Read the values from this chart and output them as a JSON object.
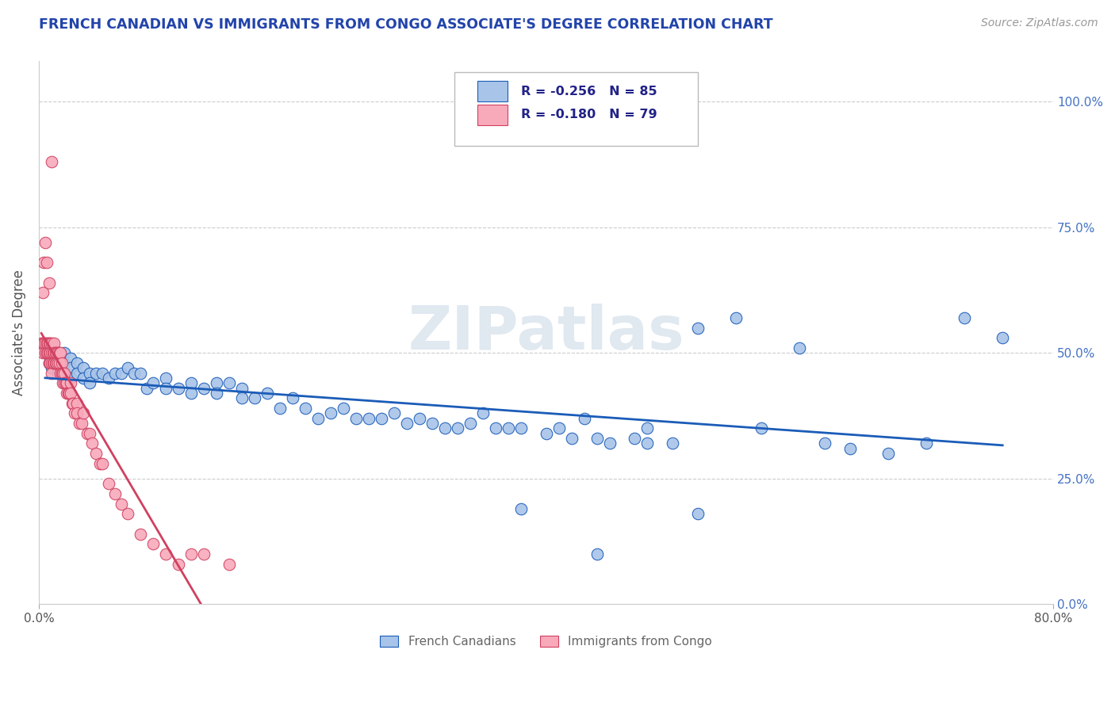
{
  "title": "FRENCH CANADIAN VS IMMIGRANTS FROM CONGO ASSOCIATE'S DEGREE CORRELATION CHART",
  "source": "Source: ZipAtlas.com",
  "ylabel": "Associate's Degree",
  "legend_label1": "French Canadians",
  "legend_label2": "Immigrants from Congo",
  "r1": -0.256,
  "n1": 85,
  "r2": -0.18,
  "n2": 79,
  "xlim": [
    0.0,
    0.8
  ],
  "ylim": [
    0.0,
    1.08
  ],
  "ytick_labels": [
    "0.0%",
    "25.0%",
    "50.0%",
    "75.0%",
    "100.0%"
  ],
  "ytick_values": [
    0.0,
    0.25,
    0.5,
    0.75,
    1.0
  ],
  "color_blue": "#A8C4E8",
  "color_blue_line": "#1B5CB8",
  "color_pink": "#F8AABB",
  "color_pink_line": "#D04060",
  "watermark": "ZIPatlas",
  "blue_x": [
    0.005,
    0.008,
    0.01,
    0.01,
    0.015,
    0.015,
    0.015,
    0.02,
    0.02,
    0.02,
    0.025,
    0.025,
    0.025,
    0.03,
    0.03,
    0.035,
    0.035,
    0.04,
    0.04,
    0.045,
    0.05,
    0.055,
    0.06,
    0.065,
    0.07,
    0.075,
    0.08,
    0.085,
    0.09,
    0.1,
    0.1,
    0.11,
    0.12,
    0.12,
    0.13,
    0.14,
    0.14,
    0.15,
    0.16,
    0.16,
    0.17,
    0.18,
    0.19,
    0.2,
    0.21,
    0.22,
    0.23,
    0.24,
    0.25,
    0.26,
    0.27,
    0.28,
    0.29,
    0.3,
    0.31,
    0.32,
    0.33,
    0.34,
    0.35,
    0.36,
    0.37,
    0.38,
    0.4,
    0.41,
    0.42,
    0.43,
    0.44,
    0.45,
    0.47,
    0.48,
    0.5,
    0.52,
    0.55,
    0.57,
    0.6,
    0.62,
    0.64,
    0.67,
    0.7,
    0.73,
    0.76,
    0.48,
    0.38,
    0.52,
    0.44
  ],
  "blue_y": [
    0.5,
    0.48,
    0.49,
    0.47,
    0.5,
    0.48,
    0.46,
    0.5,
    0.48,
    0.46,
    0.49,
    0.47,
    0.45,
    0.48,
    0.46,
    0.47,
    0.45,
    0.46,
    0.44,
    0.46,
    0.46,
    0.45,
    0.46,
    0.46,
    0.47,
    0.46,
    0.46,
    0.43,
    0.44,
    0.45,
    0.43,
    0.43,
    0.44,
    0.42,
    0.43,
    0.44,
    0.42,
    0.44,
    0.43,
    0.41,
    0.41,
    0.42,
    0.39,
    0.41,
    0.39,
    0.37,
    0.38,
    0.39,
    0.37,
    0.37,
    0.37,
    0.38,
    0.36,
    0.37,
    0.36,
    0.35,
    0.35,
    0.36,
    0.38,
    0.35,
    0.35,
    0.35,
    0.34,
    0.35,
    0.33,
    0.37,
    0.33,
    0.32,
    0.33,
    0.32,
    0.32,
    0.55,
    0.57,
    0.35,
    0.51,
    0.32,
    0.31,
    0.3,
    0.32,
    0.57,
    0.53,
    0.35,
    0.19,
    0.18,
    0.1
  ],
  "pink_x": [
    0.002,
    0.003,
    0.003,
    0.004,
    0.005,
    0.005,
    0.006,
    0.006,
    0.007,
    0.007,
    0.008,
    0.008,
    0.008,
    0.009,
    0.009,
    0.009,
    0.01,
    0.01,
    0.01,
    0.01,
    0.011,
    0.011,
    0.012,
    0.012,
    0.012,
    0.013,
    0.013,
    0.014,
    0.014,
    0.015,
    0.015,
    0.016,
    0.016,
    0.017,
    0.017,
    0.018,
    0.018,
    0.019,
    0.019,
    0.02,
    0.02,
    0.021,
    0.022,
    0.022,
    0.023,
    0.024,
    0.025,
    0.025,
    0.026,
    0.027,
    0.028,
    0.03,
    0.03,
    0.032,
    0.034,
    0.035,
    0.038,
    0.04,
    0.042,
    0.045,
    0.048,
    0.05,
    0.055,
    0.06,
    0.065,
    0.07,
    0.08,
    0.09,
    0.1,
    0.11,
    0.12,
    0.13,
    0.15,
    0.003,
    0.004,
    0.005,
    0.006,
    0.008,
    0.01
  ],
  "pink_y": [
    0.52,
    0.52,
    0.5,
    0.52,
    0.52,
    0.5,
    0.52,
    0.5,
    0.52,
    0.5,
    0.52,
    0.5,
    0.48,
    0.52,
    0.5,
    0.48,
    0.52,
    0.5,
    0.48,
    0.46,
    0.5,
    0.48,
    0.52,
    0.5,
    0.48,
    0.5,
    0.48,
    0.5,
    0.48,
    0.5,
    0.48,
    0.5,
    0.48,
    0.5,
    0.46,
    0.48,
    0.46,
    0.46,
    0.44,
    0.46,
    0.44,
    0.44,
    0.44,
    0.42,
    0.42,
    0.42,
    0.44,
    0.42,
    0.4,
    0.4,
    0.38,
    0.4,
    0.38,
    0.36,
    0.36,
    0.38,
    0.34,
    0.34,
    0.32,
    0.3,
    0.28,
    0.28,
    0.24,
    0.22,
    0.2,
    0.18,
    0.14,
    0.12,
    0.1,
    0.08,
    0.1,
    0.1,
    0.08,
    0.62,
    0.68,
    0.72,
    0.68,
    0.64,
    0.88
  ]
}
